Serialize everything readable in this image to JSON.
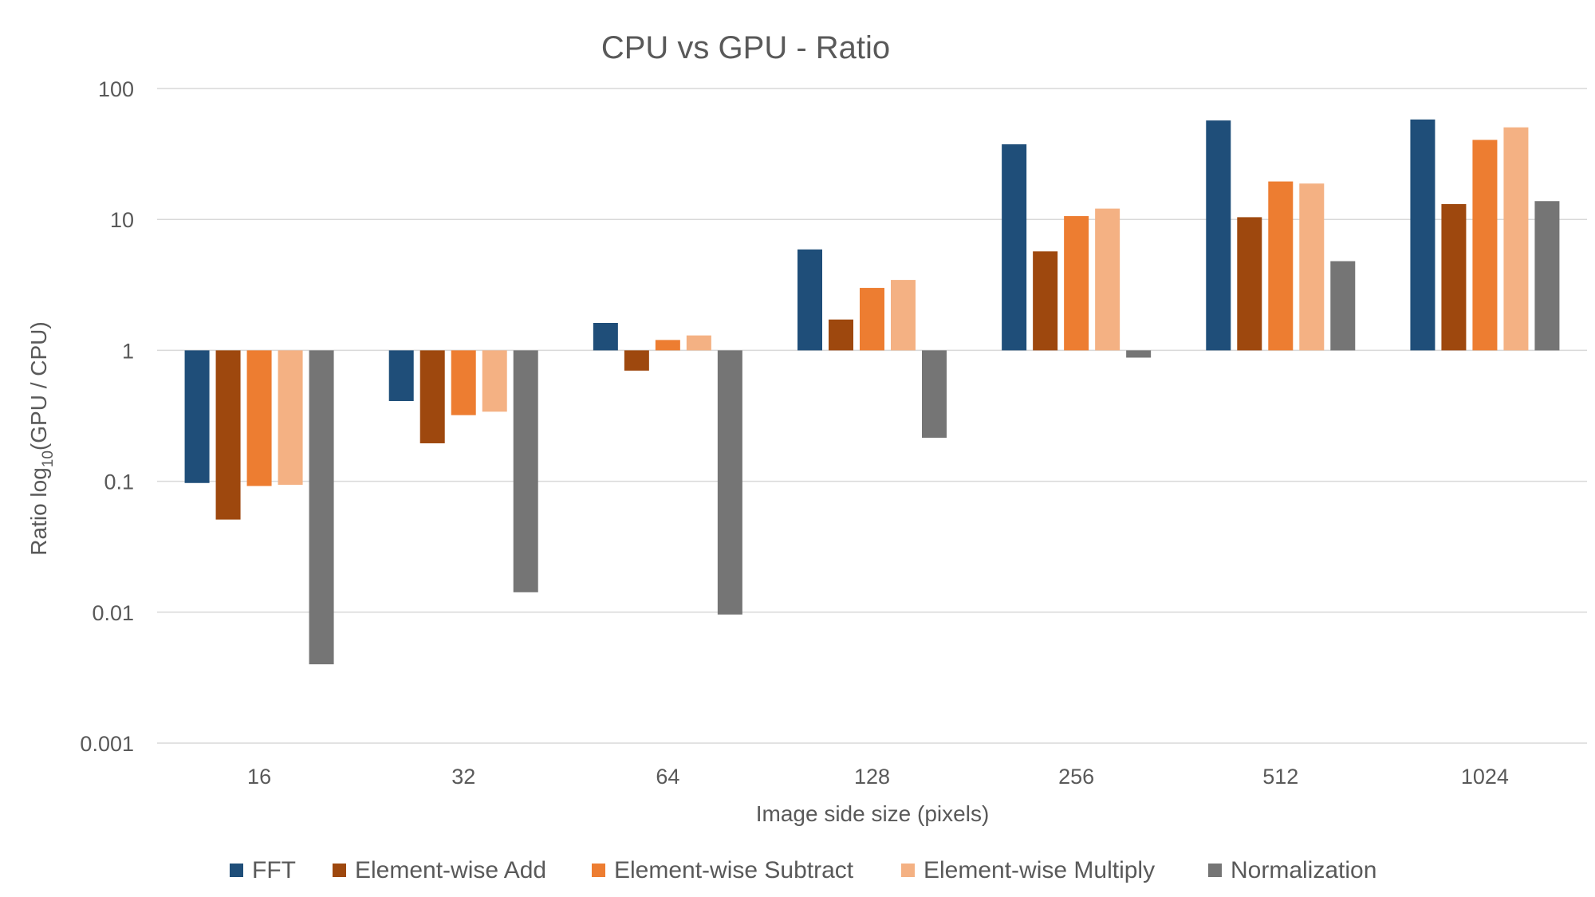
{
  "chart_data": {
    "type": "bar",
    "title": "CPU vs GPU - Ratio",
    "xlabel": "Image side size (pixels)",
    "ylabel_main": "Ratio log",
    "ylabel_sub": "10",
    "ylabel_tail": "(GPU / CPU)",
    "yscale": "log",
    "ylim": [
      0.001,
      100
    ],
    "baseline": 1,
    "yticks": [
      "0.001",
      "0.01",
      "0.1",
      "1",
      "10",
      "100"
    ],
    "categories": [
      "16",
      "32",
      "64",
      "128",
      "256",
      "512",
      "1024"
    ],
    "grid": true,
    "legend_position": "bottom",
    "series": [
      {
        "name": "FFT",
        "color": "#1f4e79",
        "values": [
          0.097,
          0.41,
          1.62,
          5.9,
          37.5,
          57,
          58
        ]
      },
      {
        "name": "Element-wise Add",
        "color": "#9e480e",
        "values": [
          0.051,
          0.195,
          0.7,
          1.72,
          5.7,
          10.4,
          13.1
        ]
      },
      {
        "name": "Element-wise Subtract",
        "color": "#ed7d31",
        "values": [
          0.092,
          0.32,
          1.2,
          3.0,
          10.6,
          19.5,
          40.5
        ]
      },
      {
        "name": "Element-wise Multiply",
        "color": "#f4b183",
        "values": [
          0.094,
          0.34,
          1.3,
          3.45,
          12.1,
          18.8,
          50.5
        ]
      },
      {
        "name": "Normalization",
        "color": "#757575",
        "values": [
          0.004,
          0.0142,
          0.0096,
          0.215,
          0.88,
          4.8,
          13.8
        ]
      }
    ]
  }
}
